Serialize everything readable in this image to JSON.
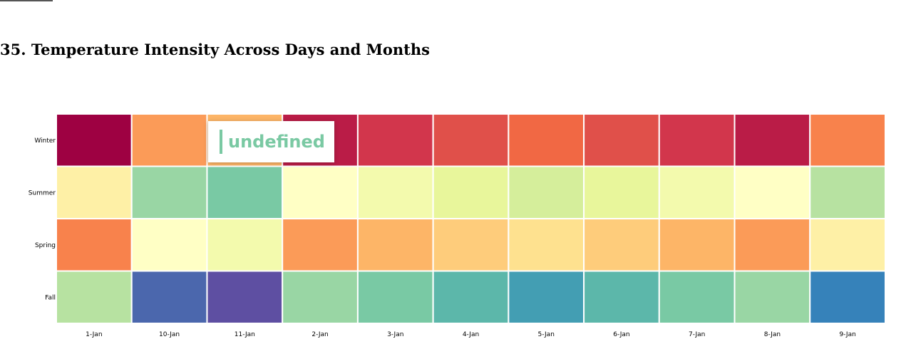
{
  "page": {
    "title": "35. Temperature Intensity Across Days and Months"
  },
  "tooltip": {
    "text": "undefined",
    "color": "#7ac9a3"
  },
  "chart_data": {
    "type": "heatmap",
    "title": "35. Temperature Intensity Across Days and Months",
    "x_categories": [
      "1-Jan",
      "10-Jan",
      "11-Jan",
      "2-Jan",
      "3-Jan",
      "4-Jan",
      "5-Jan",
      "6-Jan",
      "7-Jan",
      "8-Jan",
      "9-Jan"
    ],
    "y_categories": [
      "Winter",
      "Summer",
      "Spring",
      "Fall"
    ],
    "colormap": "Spectral (red = high, blue/purple = low)",
    "cell_colors": [
      [
        "#9e0142",
        "#fb9b58",
        "#fdb567",
        "#ba1c47",
        "#d2364c",
        "#e0504a",
        "#f16844",
        "#e0504a",
        "#d2364c",
        "#ba1c47",
        "#f8824c"
      ],
      [
        "#fef0a6",
        "#99d6a4",
        "#79c9a4",
        "#ffffc5",
        "#f3faad",
        "#e8f69b",
        "#d5ee9b",
        "#e8f69b",
        "#f3faad",
        "#ffffc5",
        "#b7e2a1"
      ],
      [
        "#f8824c",
        "#ffffc5",
        "#f3faad",
        "#fb9b58",
        "#fdb567",
        "#fecc7b",
        "#fee18f",
        "#fecc7b",
        "#fdb567",
        "#fb9b58",
        "#fef0a6"
      ],
      [
        "#b7e2a1",
        "#4b67ad",
        "#5e4fa2",
        "#99d6a4",
        "#79c9a4",
        "#5cb7aa",
        "#439eb3",
        "#5cb7aa",
        "#79c9a4",
        "#99d6a4",
        "#3682ba"
      ]
    ]
  }
}
